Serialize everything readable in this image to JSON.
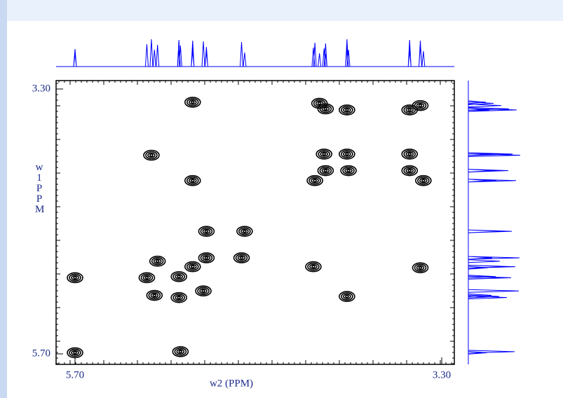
{
  "chart_data": {
    "type": "contour",
    "xlabel": "w2 (PPM)",
    "ylabel": "w1 PPM",
    "xlim": [
      5.7,
      3.3
    ],
    "ylim": [
      3.3,
      5.7
    ],
    "xticks": [
      {
        "value": 5.7,
        "label": "5.70"
      },
      {
        "value": 3.3,
        "label": "3.30"
      }
    ],
    "yticks": [
      {
        "value": 3.3,
        "label": "3.30"
      },
      {
        "value": 5.7,
        "label": "5.70"
      }
    ],
    "color": "#000000",
    "projection_color": "#0000ff",
    "x": [
      4.93,
      4.1,
      4.06,
      3.92,
      3.51,
      3.44,
      5.2,
      4.07,
      3.92,
      3.51,
      4.06,
      3.91,
      4.13,
      3.51,
      3.42,
      4.93,
      4.84,
      4.59,
      5.16,
      4.84,
      4.61,
      4.14,
      3.44,
      5.7,
      5.23,
      5.02,
      4.93,
      4.86,
      5.18,
      5.02,
      3.92,
      5.7,
      5.01
    ],
    "values": [
      3.42,
      3.43,
      3.48,
      3.49,
      3.49,
      3.45,
      3.9,
      3.89,
      3.89,
      3.89,
      4.04,
      4.04,
      4.13,
      4.04,
      4.13,
      4.13,
      4.59,
      4.59,
      4.86,
      4.83,
      4.83,
      4.91,
      4.92,
      5.01,
      5.01,
      5.0,
      4.91,
      5.13,
      5.17,
      5.19,
      5.18,
      5.69,
      5.68
    ]
  }
}
